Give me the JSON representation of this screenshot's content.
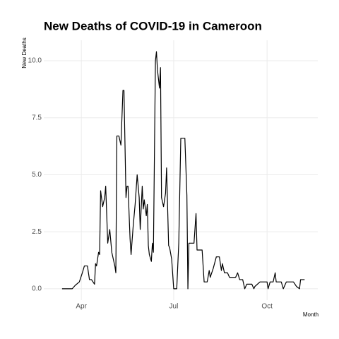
{
  "chart_data": {
    "type": "line",
    "title": "New Deaths of COVID-19 in Cameroon",
    "x_label": "Month",
    "y_label": "New Deaths",
    "x": [
      73,
      83,
      86,
      90,
      93,
      95,
      98,
      100,
      102,
      105,
      106,
      107,
      109,
      110,
      111,
      113,
      115,
      116,
      118,
      120,
      122,
      125,
      126,
      127,
      129,
      131,
      133,
      134,
      136,
      137,
      138,
      140,
      141,
      143,
      145,
      147,
      149,
      150,
      152,
      153,
      154,
      156,
      157,
      158,
      159,
      161,
      162,
      163,
      165,
      166,
      167,
      169,
      170,
      171,
      173,
      175,
      176,
      178,
      179,
      181,
      183,
      186,
      188,
      190,
      194,
      196,
      197,
      198,
      203,
      205,
      206,
      211,
      213,
      216,
      218,
      219,
      222,
      225,
      228,
      230,
      231,
      233,
      236,
      238,
      244,
      246,
      248,
      251,
      253,
      255,
      260,
      262,
      263,
      268,
      275,
      276,
      278,
      281,
      283,
      284,
      289,
      291,
      294,
      301,
      304,
      307,
      308,
      312
    ],
    "series": [
      {
        "name": "New Deaths",
        "color": "#000000",
        "values": [
          0,
          0,
          0.15,
          0.3,
          0.7,
          1.0,
          1.0,
          0.4,
          0.4,
          0.2,
          1.1,
          1.0,
          1.6,
          1.5,
          4.3,
          3.6,
          4.0,
          4.5,
          2.0,
          2.6,
          1.6,
          1.0,
          0.7,
          6.7,
          6.7,
          6.3,
          8.7,
          8.7,
          4.0,
          4.5,
          4.5,
          2.2,
          1.5,
          2.7,
          3.7,
          5.0,
          4.0,
          2.6,
          4.5,
          3.5,
          3.9,
          3.2,
          3.7,
          1.9,
          1.5,
          1.2,
          2.0,
          1.6,
          10.0,
          10.4,
          9.6,
          8.8,
          9.7,
          4.0,
          3.6,
          4.2,
          5.3,
          1.9,
          1.8,
          1.3,
          0,
          0,
          2.0,
          6.6,
          6.6,
          4.1,
          0,
          2.0,
          2.0,
          3.3,
          1.7,
          1.7,
          0.3,
          0.3,
          0.8,
          0.5,
          0.9,
          1.4,
          1.4,
          0.8,
          1.1,
          0.7,
          0.7,
          0.5,
          0.5,
          0.7,
          0.4,
          0.4,
          0,
          0.2,
          0.2,
          0,
          0.1,
          0.3,
          0.3,
          0,
          0.3,
          0.3,
          0.7,
          0.3,
          0.3,
          0,
          0.3,
          0.3,
          0.1,
          0,
          0.4,
          0.4
        ]
      }
    ],
    "xlim": [
      55,
      325
    ],
    "xticks": [
      {
        "value": 92,
        "label": "Apr"
      },
      {
        "value": 183,
        "label": "Jul"
      },
      {
        "value": 275,
        "label": "Oct"
      }
    ],
    "ylim": [
      -0.5,
      10.9
    ],
    "yticks": [
      {
        "value": 0,
        "label": "0.0"
      },
      2.5,
      {
        "value": 5,
        "label": "5.0"
      },
      7.5,
      {
        "value": 10,
        "label": "10.0"
      }
    ],
    "grid": true
  }
}
